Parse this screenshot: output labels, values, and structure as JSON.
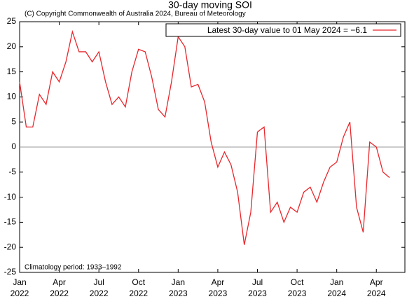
{
  "chart_data": {
    "type": "line",
    "title": "30-day moving SOI",
    "subtitle": "(C) Copyright Commonwealth of Australia 2024, Bureau of Meteorology",
    "annotation": "Climatology period: 1933–1992",
    "x": [
      2022.0,
      2022.042,
      2022.083,
      2022.125,
      2022.167,
      2022.208,
      2022.25,
      2022.292,
      2022.333,
      2022.375,
      2022.417,
      2022.458,
      2022.5,
      2022.542,
      2022.583,
      2022.625,
      2022.667,
      2022.708,
      2022.75,
      2022.792,
      2022.833,
      2022.875,
      2022.917,
      2022.958,
      2023.0,
      2023.042,
      2023.083,
      2023.125,
      2023.167,
      2023.208,
      2023.25,
      2023.292,
      2023.333,
      2023.375,
      2023.417,
      2023.458,
      2023.5,
      2023.542,
      2023.583,
      2023.625,
      2023.667,
      2023.708,
      2023.75,
      2023.792,
      2023.833,
      2023.875,
      2023.917,
      2023.958,
      2024.0,
      2024.042,
      2024.083,
      2024.125,
      2024.167,
      2024.208,
      2024.25,
      2024.292,
      2024.333
    ],
    "series": [
      {
        "name": "Latest 30-day value to 01 May 2024 = −6.1",
        "color": "#e8262b",
        "values": [
          13,
          4,
          4,
          10.5,
          8.5,
          15,
          13,
          17,
          23,
          19,
          19,
          17,
          19,
          13,
          8.5,
          10,
          8,
          15,
          19.5,
          19,
          14,
          7.5,
          6,
          13,
          22,
          20,
          12,
          12.5,
          9,
          1,
          -4,
          -1,
          -3.5,
          -9,
          -19.5,
          -13,
          3,
          4,
          -13,
          -11,
          -15,
          -12,
          -13,
          -9,
          -8,
          -11,
          -7,
          -4,
          -3,
          2,
          5,
          -12,
          -17,
          1,
          0,
          -5,
          -6.1
        ]
      }
    ],
    "xlim": [
      2022.0,
      2024.43
    ],
    "xticks": [
      {
        "value": 2022.0,
        "label": "Jan\n2022"
      },
      {
        "value": 2022.25,
        "label": "Apr\n2022"
      },
      {
        "value": 2022.5,
        "label": "Jul\n2022"
      },
      {
        "value": 2022.75,
        "label": "Oct\n2022"
      },
      {
        "value": 2023.0,
        "label": "Jan\n2023"
      },
      {
        "value": 2023.25,
        "label": "Apr\n2023"
      },
      {
        "value": 2023.5,
        "label": "Jul\n2023"
      },
      {
        "value": 2023.75,
        "label": "Oct\n2023"
      },
      {
        "value": 2024.0,
        "label": "Jan\n2024"
      },
      {
        "value": 2024.25,
        "label": "Apr\n2024"
      }
    ],
    "ylim": [
      -25,
      25
    ],
    "yticks": [
      -25,
      -20,
      -15,
      -10,
      -5,
      0,
      5,
      10,
      15,
      20,
      25
    ],
    "zero_line": true,
    "legend": "top-right"
  }
}
